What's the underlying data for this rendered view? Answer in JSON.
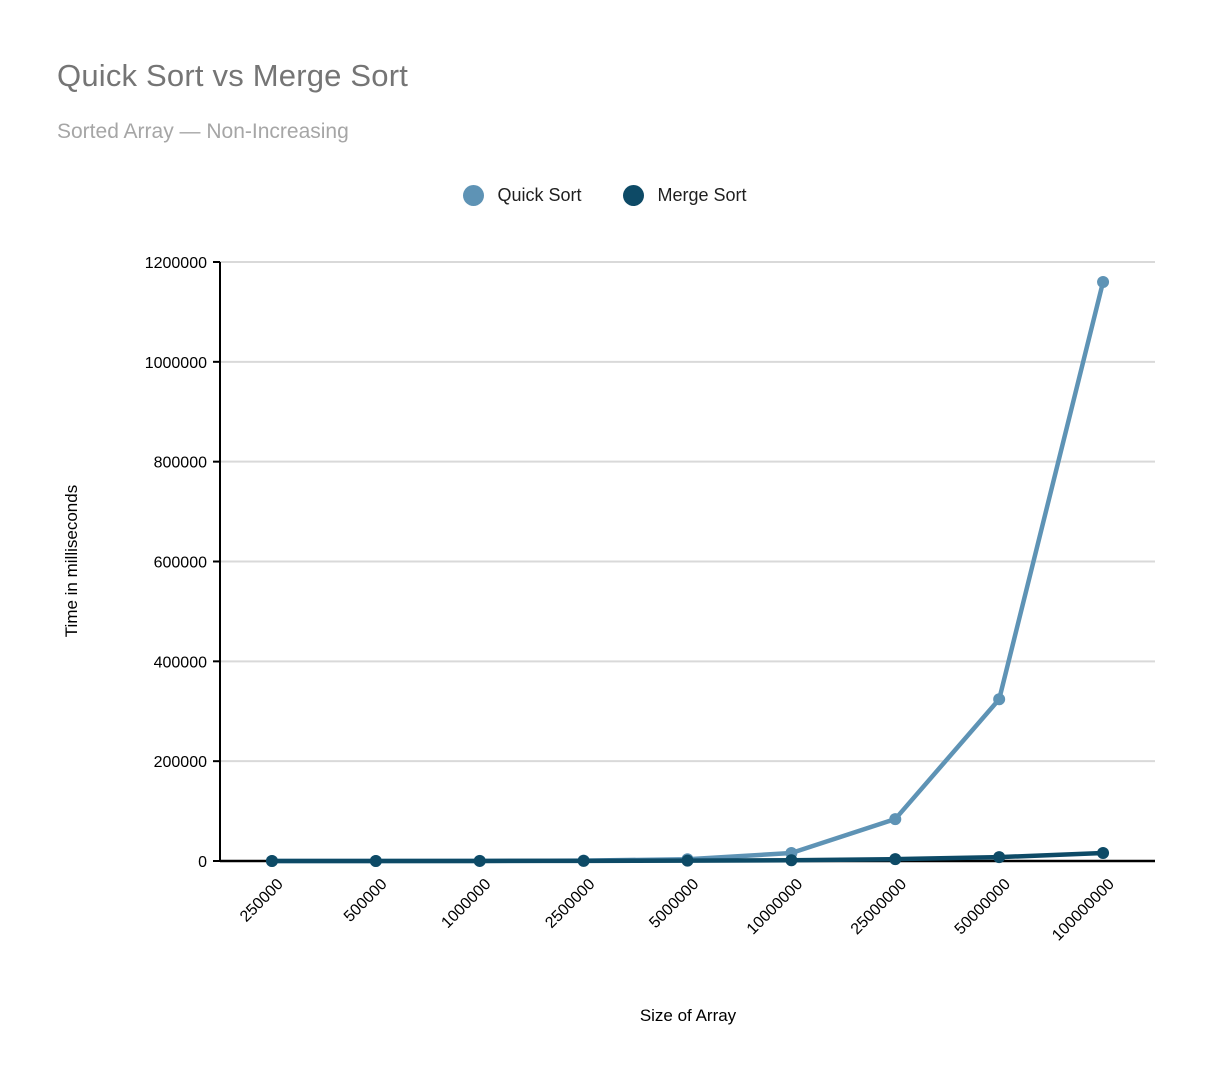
{
  "header": {
    "title": "Quick Sort vs Merge Sort",
    "subtitle": "Sorted Array — Non-Increasing"
  },
  "colors": {
    "quick_sort": "#5e93b5",
    "merge_sort": "#0d4a66",
    "gridline": "#d9d9d9",
    "axis": "#000000",
    "title_text": "#757575",
    "subtitle_text": "#a6a6a6",
    "legend_text": "#1f1f1f",
    "background": "#ffffff"
  },
  "chart_data": {
    "type": "line",
    "title": "Quick Sort vs Merge Sort",
    "subtitle": "Sorted Array — Non-Increasing",
    "xlabel": "Size of Array",
    "ylabel": "Time in milliseconds",
    "categories": [
      "250000",
      "500000",
      "1000000",
      "2500000",
      "5000000",
      "10000000",
      "25000000",
      "50000000",
      "100000000"
    ],
    "series": [
      {
        "name": "Quick Sort",
        "color": "#5e93b5",
        "values": [
          30,
          65,
          140,
          850,
          3400,
          16000,
          84000,
          324000,
          1160000
        ]
      },
      {
        "name": "Merge Sort",
        "color": "#0d4a66",
        "values": [
          25,
          55,
          115,
          310,
          650,
          1400,
          3700,
          7800,
          16000
        ]
      }
    ],
    "ylim": [
      0,
      1200000
    ],
    "yticks": [
      0,
      200000,
      400000,
      600000,
      800000,
      1000000,
      1200000
    ],
    "grid": true,
    "legend_position": "top"
  }
}
